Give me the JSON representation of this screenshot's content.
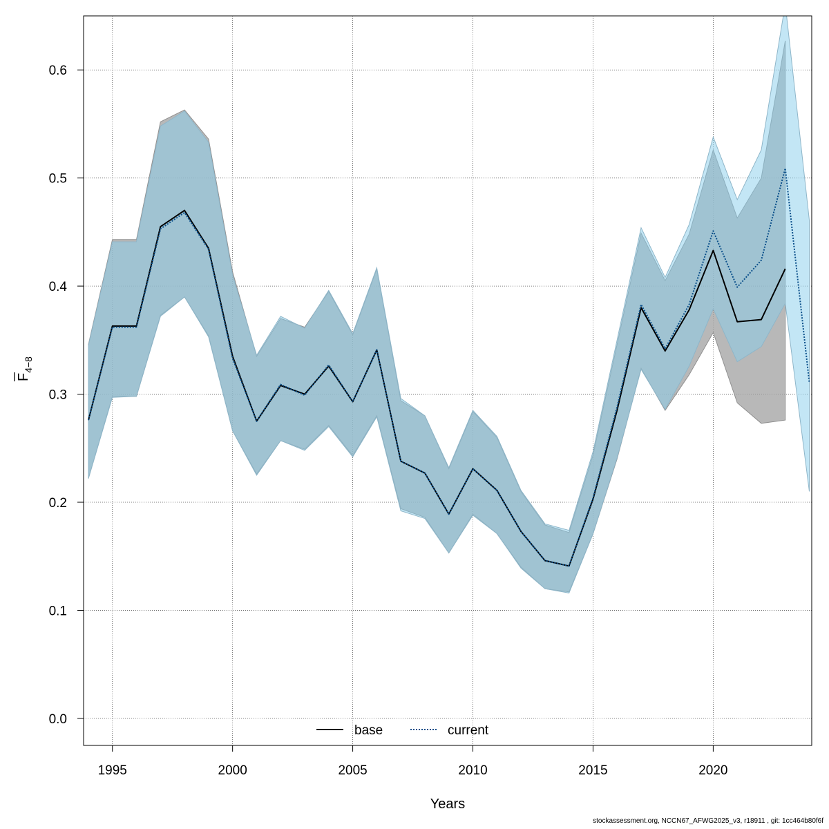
{
  "chart_data": {
    "type": "line",
    "xlabel": "Years",
    "ylabel_main": "F",
    "ylabel_sub": "4−8",
    "xlim": [
      1993.8,
      2024.1
    ],
    "ylim": [
      -0.025,
      0.65
    ],
    "x_ticks": [
      1995,
      2000,
      2005,
      2010,
      2015,
      2020
    ],
    "x_tick_labels": [
      "1995",
      "2000",
      "2005",
      "2010",
      "2015",
      "2020"
    ],
    "y_ticks": [
      0.0,
      0.1,
      0.2,
      0.3,
      0.4,
      0.5,
      0.6
    ],
    "y_tick_labels": [
      "0.0",
      "0.1",
      "0.2",
      "0.3",
      "0.4",
      "0.5",
      "0.6"
    ],
    "grid": true,
    "legend_position": "bottom",
    "series": [
      {
        "name": "base",
        "line_style": "solid",
        "line_color": "#000000",
        "band_color": "#a0a0a0",
        "x": [
          1994,
          1995,
          1996,
          1997,
          1998,
          1999,
          2000,
          2001,
          2002,
          2003,
          2004,
          2005,
          2006,
          2007,
          2008,
          2009,
          2010,
          2011,
          2012,
          2013,
          2014,
          2015,
          2016,
          2017,
          2018,
          2019,
          2020,
          2021,
          2022,
          2023
        ],
        "estimate": [
          0.276,
          0.363,
          0.363,
          0.455,
          0.47,
          0.435,
          0.335,
          0.275,
          0.308,
          0.3,
          0.326,
          0.293,
          0.341,
          0.238,
          0.227,
          0.189,
          0.231,
          0.211,
          0.173,
          0.146,
          0.141,
          0.203,
          0.285,
          0.38,
          0.34,
          0.378,
          0.433,
          0.367,
          0.369,
          0.416
        ],
        "lower": [
          0.222,
          0.298,
          0.298,
          0.373,
          0.39,
          0.354,
          0.266,
          0.226,
          0.257,
          0.249,
          0.271,
          0.243,
          0.28,
          0.194,
          0.186,
          0.153,
          0.189,
          0.171,
          0.14,
          0.12,
          0.117,
          0.171,
          0.24,
          0.324,
          0.285,
          0.318,
          0.357,
          0.292,
          0.273,
          0.276
        ],
        "upper": [
          0.346,
          0.443,
          0.443,
          0.552,
          0.563,
          0.536,
          0.413,
          0.335,
          0.37,
          0.362,
          0.395,
          0.355,
          0.416,
          0.294,
          0.28,
          0.231,
          0.284,
          0.26,
          0.21,
          0.179,
          0.172,
          0.244,
          0.346,
          0.449,
          0.405,
          0.448,
          0.526,
          0.463,
          0.5,
          0.627
        ]
      },
      {
        "name": "current",
        "line_style": "dotted",
        "line_color": "#0a4f8a",
        "band_color": "#87ceeb",
        "x": [
          1994,
          1995,
          1996,
          1997,
          1998,
          1999,
          2000,
          2001,
          2002,
          2003,
          2004,
          2005,
          2006,
          2007,
          2008,
          2009,
          2010,
          2011,
          2012,
          2013,
          2014,
          2015,
          2016,
          2017,
          2018,
          2019,
          2020,
          2021,
          2022,
          2023,
          2024
        ],
        "estimate": [
          0.276,
          0.362,
          0.362,
          0.453,
          0.468,
          0.434,
          0.333,
          0.275,
          0.309,
          0.299,
          0.327,
          0.293,
          0.341,
          0.238,
          0.227,
          0.189,
          0.231,
          0.211,
          0.173,
          0.146,
          0.141,
          0.204,
          0.288,
          0.383,
          0.342,
          0.383,
          0.451,
          0.399,
          0.424,
          0.509,
          0.311
        ],
        "lower": [
          0.222,
          0.297,
          0.298,
          0.372,
          0.39,
          0.353,
          0.266,
          0.225,
          0.257,
          0.248,
          0.27,
          0.242,
          0.279,
          0.192,
          0.185,
          0.153,
          0.188,
          0.171,
          0.139,
          0.12,
          0.116,
          0.171,
          0.241,
          0.323,
          0.286,
          0.326,
          0.379,
          0.33,
          0.344,
          0.384,
          0.21
        ],
        "upper": [
          0.345,
          0.441,
          0.441,
          0.548,
          0.562,
          0.533,
          0.41,
          0.336,
          0.372,
          0.361,
          0.396,
          0.356,
          0.417,
          0.296,
          0.28,
          0.232,
          0.285,
          0.261,
          0.211,
          0.18,
          0.174,
          0.247,
          0.35,
          0.454,
          0.408,
          0.457,
          0.538,
          0.48,
          0.526,
          0.661,
          0.461
        ]
      }
    ]
  },
  "footer": "stockassessment.org, NCCN67_AFWG2025_v3, r18911 , git: 1cc464b80f6f"
}
